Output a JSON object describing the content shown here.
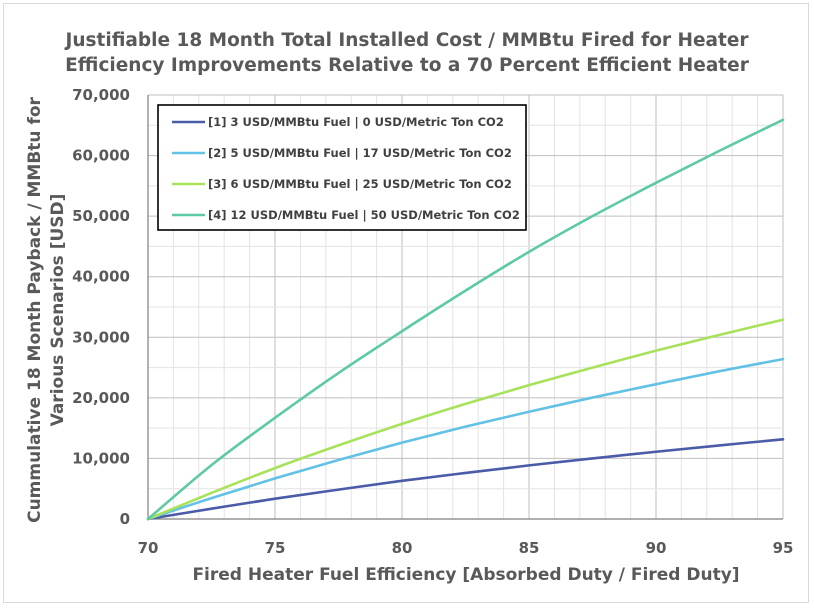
{
  "chart_data": {
    "type": "line",
    "title_lines": [
      "Justifiable 18 Month Total Installed Cost / MMBtu Fired for  Heater",
      "Efficiency Improvements Relative to a 70 Percent Efficient Heater"
    ],
    "xlabel": "Fired Heater Fuel Efficiency [Absorbed Duty / Fired Duty]",
    "ylabel_lines": [
      "Cummulative 18 Month Payback / MMBtu for",
      "Various Scenarios [USD]"
    ],
    "xlim": [
      70,
      95
    ],
    "ylim": [
      0,
      70000
    ],
    "x_ticks": [
      70,
      75,
      80,
      85,
      90,
      95
    ],
    "y_ticks": [
      0,
      10000,
      20000,
      30000,
      40000,
      50000,
      60000,
      70000
    ],
    "y_tick_labels": [
      "0",
      "10,000",
      "20,000",
      "30,000",
      "40,000",
      "50,000",
      "60,000",
      "70,000"
    ],
    "grid": true,
    "legend_position": "top-left",
    "x": [
      70,
      72.5,
      75,
      77.5,
      80,
      82.5,
      85,
      87.5,
      90,
      92.5,
      95
    ],
    "series": [
      {
        "name": "[1] 3 USD/MMBtu Fuel | 0 USD/Metric Ton CO2",
        "color": "#4a5ba8",
        "values": [
          0,
          1700,
          3350,
          4850,
          6300,
          7600,
          8850,
          10000,
          11100,
          12150,
          13150
        ]
      },
      {
        "name": "[2] 5 USD/MMBtu Fuel | 17 USD/Metric Ton CO2",
        "color": "#62c1e5",
        "values": [
          0,
          3450,
          6700,
          9750,
          12600,
          15250,
          17700,
          20050,
          22250,
          24400,
          26400
        ]
      },
      {
        "name": "[3] 6 USD/MMBtu Fuel | 25 USD/Metric Ton CO2",
        "color": "#a7e25a",
        "values": [
          0,
          4300,
          8400,
          12150,
          15700,
          19000,
          22100,
          25000,
          27800,
          30400,
          32900
        ]
      },
      {
        "name": "[4] 12 USD/MMBtu Fuel | 50 USD/Metric Ton CO2",
        "color": "#5ec9a6",
        "values": [
          0,
          8900,
          16700,
          24100,
          31000,
          37700,
          44100,
          50000,
          55500,
          60800,
          65900
        ]
      }
    ]
  }
}
